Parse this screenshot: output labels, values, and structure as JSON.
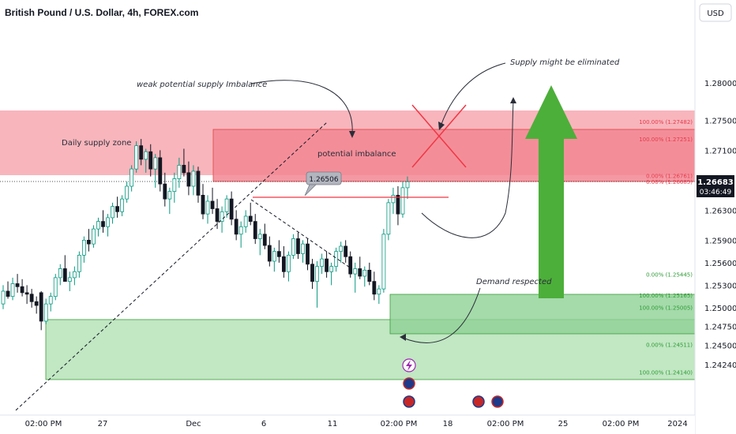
{
  "title": "British Pound / U.S. Dollar, 4h, FOREX.com",
  "currency_button": "USD",
  "price_tag": {
    "price": "1.26683",
    "countdown": "03:46:49"
  },
  "callout": "1.26506",
  "colors": {
    "up": "#089981",
    "down": "#131722",
    "supply_fill": "#f7a8b0",
    "supply_inner": "#f28793",
    "demand_fill": "#b6e3b8",
    "demand_inner": "#8fd195",
    "arrow_green": "#4caf3a",
    "red_x": "#f23645",
    "fib_red": "#e53b4b",
    "fib_green": "#2e9c36"
  },
  "annotations": {
    "daily_supply": "Daily supply zone",
    "weak_potential": "weak potential supply Imbalance",
    "potential_imbalance": "potential imbalance",
    "supply_eliminated": "Supply might be eliminated",
    "demand_respected": "Demand respected"
  },
  "fib_labels": [
    {
      "text": "100.00% (1.27482)",
      "price": 1.27482,
      "color": "red"
    },
    {
      "text": "100.00% (1.27251)",
      "price": 1.27251,
      "color": "red"
    },
    {
      "text": "0.00% (1.26761)",
      "price": 1.26761,
      "color": "red"
    },
    {
      "text": "0.00% (1.26685)",
      "price": 1.26685,
      "color": "red"
    },
    {
      "text": "0.00% (1.25445)",
      "price": 1.25445,
      "color": "green"
    },
    {
      "text": "100.00% (1.25165)",
      "price": 1.25165,
      "color": "green"
    },
    {
      "text": "100.00% (1.25005)",
      "price": 1.25005,
      "color": "green"
    },
    {
      "text": "0.00% (1.24511)",
      "price": 1.24511,
      "color": "green"
    },
    {
      "text": "100.00% (1.24140)",
      "price": 1.2414,
      "color": "green"
    }
  ],
  "chart_data": {
    "type": "candlestick",
    "title": "British Pound / U.S. Dollar, 4h, FOREX.com",
    "y_ticks": [
      "1.28000",
      "1.27500",
      "1.27100",
      "1.26300",
      "1.25900",
      "1.25600",
      "1.25300",
      "1.25000",
      "1.24750",
      "1.24500",
      "1.24240"
    ],
    "x_ticks": [
      "02:00 PM",
      "27",
      "Dec",
      "6",
      "11",
      "02:00 PM",
      "18",
      "02:00 PM",
      "25",
      "02:00 PM",
      "2024"
    ],
    "ylim": [
      1.2414,
      1.2825
    ],
    "last_price": 1.26683,
    "candles_ohlc": [
      [
        1.2505,
        1.253,
        1.2498,
        1.2522
      ],
      [
        1.2522,
        1.2535,
        1.2512,
        1.2515
      ],
      [
        1.2515,
        1.254,
        1.251,
        1.2532
      ],
      [
        1.2532,
        1.2545,
        1.252,
        1.2528
      ],
      [
        1.2528,
        1.2538,
        1.2515,
        1.252
      ],
      [
        1.252,
        1.253,
        1.2505,
        1.2518
      ],
      [
        1.2518,
        1.2525,
        1.25,
        1.2508
      ],
      [
        1.2508,
        1.2515,
        1.2492,
        1.2503
      ],
      [
        1.252,
        1.2522,
        1.247,
        1.2482
      ],
      [
        1.2482,
        1.2512,
        1.2478,
        1.2505
      ],
      [
        1.2505,
        1.252,
        1.2495,
        1.2515
      ],
      [
        1.2515,
        1.2545,
        1.251,
        1.254
      ],
      [
        1.254,
        1.2558,
        1.253,
        1.2552
      ],
      [
        1.2552,
        1.257,
        1.254,
        1.2535
      ],
      [
        1.2535,
        1.2548,
        1.2522,
        1.254
      ],
      [
        1.254,
        1.2555,
        1.253,
        1.2548
      ],
      [
        1.2548,
        1.2575,
        1.254,
        1.257
      ],
      [
        1.257,
        1.2595,
        1.256,
        1.259
      ],
      [
        1.259,
        1.2605,
        1.2575,
        1.2585
      ],
      [
        1.2585,
        1.261,
        1.258,
        1.2605
      ],
      [
        1.2605,
        1.262,
        1.2595,
        1.2615
      ],
      [
        1.2615,
        1.263,
        1.26,
        1.2608
      ],
      [
        1.2608,
        1.2625,
        1.2595,
        1.262
      ],
      [
        1.262,
        1.264,
        1.2612,
        1.2635
      ],
      [
        1.2635,
        1.2648,
        1.262,
        1.2628
      ],
      [
        1.2628,
        1.265,
        1.2622,
        1.2645
      ],
      [
        1.2645,
        1.2668,
        1.264,
        1.2662
      ],
      [
        1.2662,
        1.269,
        1.2655,
        1.2685
      ],
      [
        1.2685,
        1.2722,
        1.268,
        1.2716
      ],
      [
        1.2716,
        1.2725,
        1.269,
        1.2698
      ],
      [
        1.2698,
        1.2712,
        1.268,
        1.2708
      ],
      [
        1.2708,
        1.2718,
        1.2675,
        1.2685
      ],
      [
        1.2685,
        1.2705,
        1.266,
        1.27
      ],
      [
        1.27,
        1.271,
        1.2655,
        1.2665
      ],
      [
        1.2665,
        1.268,
        1.2635,
        1.2645
      ],
      [
        1.2645,
        1.266,
        1.2625,
        1.2655
      ],
      [
        1.2655,
        1.268,
        1.264,
        1.2672
      ],
      [
        1.2672,
        1.27,
        1.266,
        1.269
      ],
      [
        1.269,
        1.2712,
        1.2675,
        1.268
      ],
      [
        1.268,
        1.2695,
        1.265,
        1.2662
      ],
      [
        1.2662,
        1.269,
        1.265,
        1.2682
      ],
      [
        1.2682,
        1.2688,
        1.264,
        1.265
      ],
      [
        1.265,
        1.2665,
        1.2618,
        1.2625
      ],
      [
        1.2625,
        1.265,
        1.2612,
        1.2642
      ],
      [
        1.2642,
        1.266,
        1.2625,
        1.2632
      ],
      [
        1.2632,
        1.2645,
        1.2605,
        1.2615
      ],
      [
        1.2615,
        1.2635,
        1.26,
        1.2628
      ],
      [
        1.2628,
        1.265,
        1.262,
        1.2645
      ],
      [
        1.2645,
        1.2655,
        1.261,
        1.2618
      ],
      [
        1.2618,
        1.263,
        1.259,
        1.2598
      ],
      [
        1.2598,
        1.2615,
        1.258,
        1.2608
      ],
      [
        1.2608,
        1.263,
        1.26,
        1.2622
      ],
      [
        1.2622,
        1.264,
        1.261,
        1.2615
      ],
      [
        1.2615,
        1.2625,
        1.2585,
        1.2592
      ],
      [
        1.2592,
        1.2605,
        1.257,
        1.2598
      ],
      [
        1.2598,
        1.2612,
        1.2578,
        1.2583
      ],
      [
        1.2583,
        1.2595,
        1.2555,
        1.2562
      ],
      [
        1.2562,
        1.258,
        1.2548,
        1.2575
      ],
      [
        1.2575,
        1.259,
        1.256,
        1.2568
      ],
      [
        1.2568,
        1.2582,
        1.254,
        1.2548
      ],
      [
        1.2548,
        1.2575,
        1.2535,
        1.257
      ],
      [
        1.257,
        1.2598,
        1.2565,
        1.2592
      ],
      [
        1.2592,
        1.26,
        1.2565,
        1.2572
      ],
      [
        1.2572,
        1.259,
        1.256,
        1.2585
      ],
      [
        1.2585,
        1.2592,
        1.255,
        1.2558
      ],
      [
        1.2558,
        1.2565,
        1.2525,
        1.2535
      ],
      [
        1.2535,
        1.2562,
        1.25,
        1.2555
      ],
      [
        1.2555,
        1.2572,
        1.2545,
        1.2565
      ],
      [
        1.2565,
        1.2575,
        1.254,
        1.2548
      ],
      [
        1.2548,
        1.256,
        1.253,
        1.2555
      ],
      [
        1.2555,
        1.258,
        1.2548,
        1.2575
      ],
      [
        1.2575,
        1.2588,
        1.256,
        1.2582
      ],
      [
        1.2582,
        1.259,
        1.256,
        1.2568
      ],
      [
        1.2568,
        1.2575,
        1.254,
        1.2545
      ],
      [
        1.2545,
        1.256,
        1.252,
        1.2552
      ],
      [
        1.2552,
        1.2568,
        1.2538,
        1.2542
      ],
      [
        1.2542,
        1.2555,
        1.2528,
        1.255
      ],
      [
        1.255,
        1.256,
        1.253,
        1.2535
      ],
      [
        1.2535,
        1.2548,
        1.251,
        1.2518
      ],
      [
        1.2518,
        1.253,
        1.2505,
        1.2525
      ],
      [
        1.2525,
        1.2605,
        1.252,
        1.2598
      ],
      [
        1.2598,
        1.2645,
        1.259,
        1.264
      ],
      [
        1.264,
        1.266,
        1.2625,
        1.265
      ],
      [
        1.265,
        1.2662,
        1.261,
        1.2625
      ],
      [
        1.2625,
        1.2668,
        1.262,
        1.266
      ],
      [
        1.266,
        1.2675,
        1.2645,
        1.2668
      ]
    ]
  }
}
